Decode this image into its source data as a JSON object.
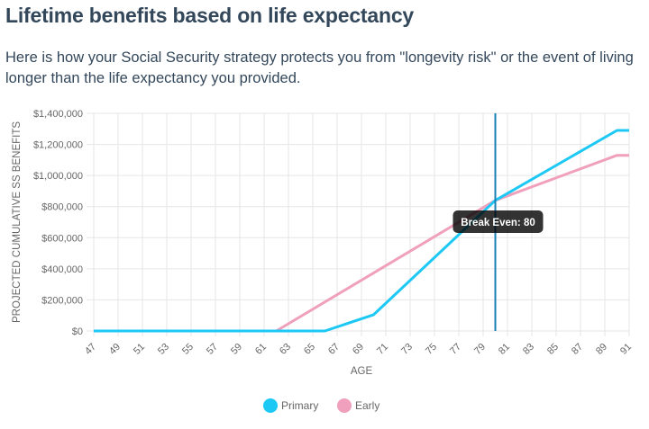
{
  "header": {
    "title": "Lifetime benefits based on life expectancy",
    "description": "Here is how your Social Security strategy protects you from \"longevity risk\" or the event of living longer than the life expectancy you provided."
  },
  "chart_data": {
    "type": "line",
    "title": "",
    "xlabel": "AGE",
    "ylabel": "PROJECTED CUMULATIVE SS BENEFITS",
    "xlim": [
      47,
      91
    ],
    "ylim": [
      0,
      1400000
    ],
    "x_ticks": [
      47,
      49,
      51,
      53,
      55,
      57,
      59,
      61,
      63,
      65,
      67,
      69,
      71,
      73,
      75,
      77,
      79,
      81,
      83,
      85,
      87,
      89,
      91
    ],
    "y_ticks": [
      0,
      200000,
      400000,
      600000,
      800000,
      1000000,
      1200000,
      1400000
    ],
    "y_tick_labels": [
      "$0",
      "$200,000",
      "$400,000",
      "$600,000",
      "$800,000",
      "$1,000,000",
      "$1,200,000",
      "$1,400,000"
    ],
    "grid": true,
    "legend_position": "bottom",
    "series": [
      {
        "name": "Primary",
        "color": "#1ec8f5",
        "points": [
          [
            47,
            0
          ],
          [
            66,
            0
          ],
          [
            70,
            105000
          ],
          [
            80,
            840000
          ],
          [
            90,
            1290000
          ],
          [
            91,
            1290000
          ]
        ]
      },
      {
        "name": "Early",
        "color": "#f0a0bc",
        "points": [
          [
            47,
            0
          ],
          [
            62,
            0
          ],
          [
            80,
            840000
          ],
          [
            90,
            1130000
          ],
          [
            91,
            1130000
          ]
        ]
      }
    ],
    "annotations": [
      {
        "type": "vertical-line",
        "x": 80,
        "color": "#1a7fb5",
        "label": "Break Even: 80"
      }
    ]
  }
}
